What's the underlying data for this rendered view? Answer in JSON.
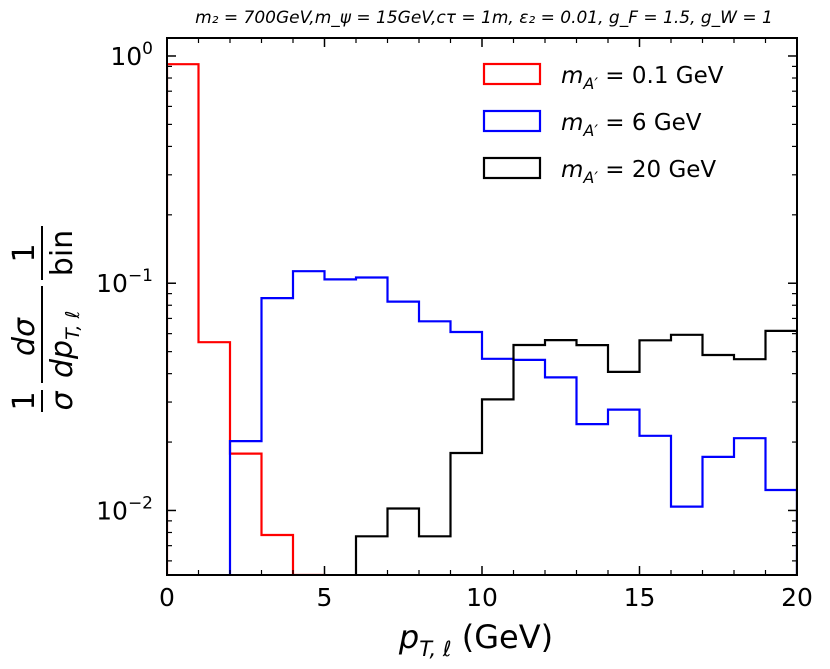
{
  "chart_data": {
    "type": "histogram-step",
    "title": "m₂ = 700GeV,m_ψ = 15GeV,cτ = 1m, ε₂ = 0.01, g_F = 1.5, g_W = 1",
    "xlabel": "p_T,ℓ (GeV)",
    "ylabel": "1/σ dσ/dp_T,ℓ 1/bin",
    "xscale": "linear",
    "yscale": "log",
    "xlim": [
      0,
      20
    ],
    "ylim": [
      0.0052,
      1.2
    ],
    "x_ticks": [
      0,
      5,
      10,
      15,
      20
    ],
    "x_tick_labels": [
      "0",
      "5",
      "10",
      "15",
      "20"
    ],
    "y_ticks": [
      1,
      0.1,
      0.01
    ],
    "y_tick_labels": [
      {
        "base": "10",
        "exp": "0"
      },
      {
        "base": "10",
        "exp": "−1"
      },
      {
        "base": "10",
        "exp": "−2"
      }
    ],
    "bin_edges": [
      0,
      1,
      2,
      3,
      4,
      5,
      6,
      7,
      8,
      9,
      10,
      11,
      12,
      13,
      14,
      15,
      16,
      17,
      18,
      19,
      20
    ],
    "legend_position": "top-right",
    "series": [
      {
        "name": "m_A′ = 0.1 GeV",
        "label_main": "m",
        "label_sub": "A′",
        "label_rest": " = 0.1 GeV",
        "color": "#ff0000",
        "values": [
          0.92,
          0.055,
          0.0178,
          0.0078,
          0.0052,
          null,
          null,
          null,
          null,
          null,
          null,
          null,
          null,
          null,
          null,
          null,
          null,
          null,
          null,
          null
        ]
      },
      {
        "name": "m_A′ = 6 GeV",
        "label_main": "m",
        "label_sub": "A′",
        "label_rest": " = 6 GeV",
        "color": "#0000ff",
        "values": [
          null,
          null,
          0.0202,
          0.086,
          0.113,
          0.104,
          0.106,
          0.083,
          0.068,
          0.061,
          0.0465,
          0.046,
          0.0385,
          0.024,
          0.0278,
          0.0213,
          0.0104,
          0.0172,
          0.0208,
          0.0123
        ]
      },
      {
        "name": "m_A′ = 20 GeV",
        "label_main": "m",
        "label_sub": "A′",
        "label_rest": " = 20 GeV",
        "color": "#000000",
        "values": [
          null,
          null,
          null,
          null,
          null,
          null,
          0.0077,
          0.0102,
          0.0077,
          0.0179,
          0.0308,
          0.0535,
          0.0562,
          0.0534,
          0.0407,
          0.0561,
          0.0593,
          0.0483,
          0.0463,
          0.0617
        ]
      }
    ]
  }
}
